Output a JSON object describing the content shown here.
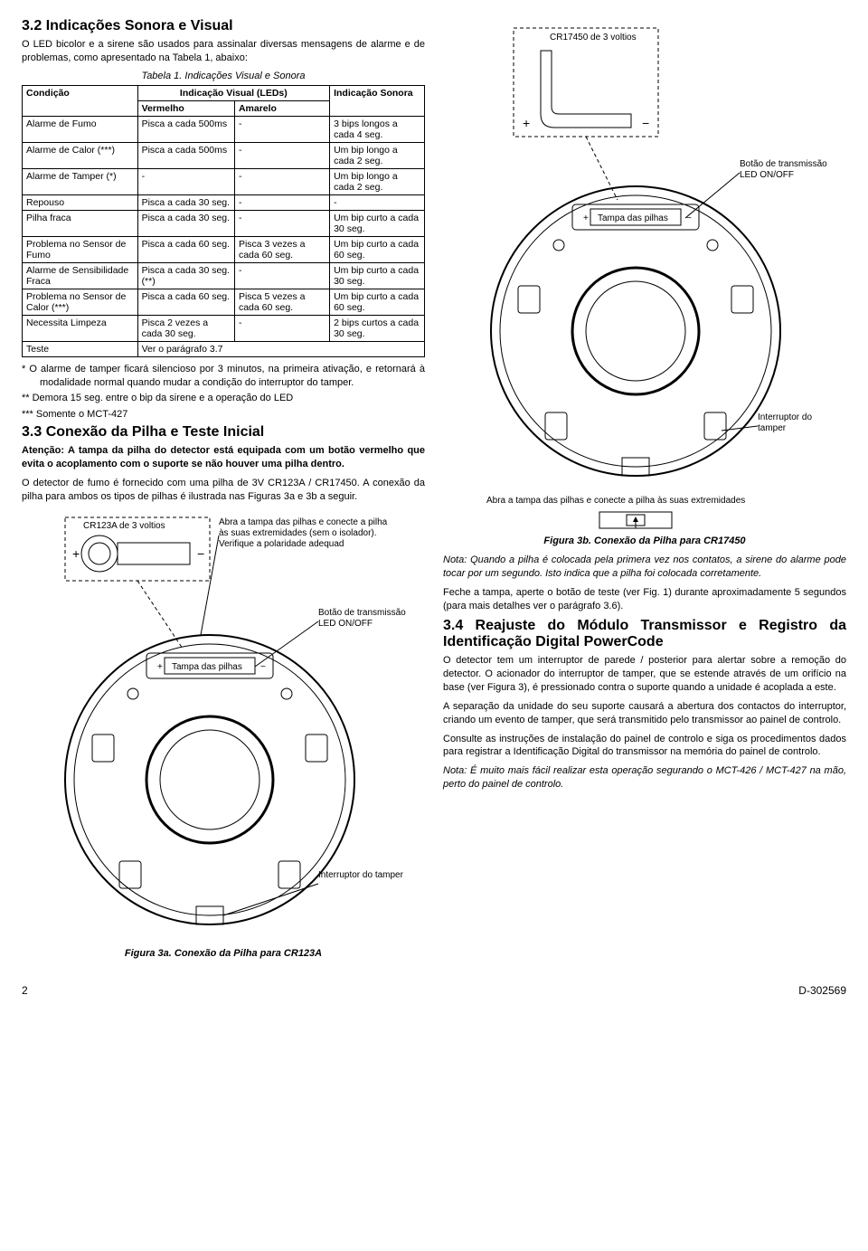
{
  "left": {
    "h_3_2": "3.2 Indicações Sonora e Visual",
    "p_3_2_intro": "O LED bicolor e a sirene são usados para assinalar diversas mensagens de alarme e de problemas, como apresentado na Tabela 1, abaixo:",
    "table_caption": "Tabela 1. Indicações Visual e Sonora",
    "th_cond": "Condição",
    "th_vis": "Indicação Visual (LEDs)",
    "th_verm": "Vermelho",
    "th_amar": "Amarelo",
    "th_son": "Indicação Sonora",
    "rows": [
      {
        "c": "Alarme de Fumo",
        "v": "Pisca a cada 500ms",
        "a": "-",
        "s": "3 bips longos a cada 4 seg."
      },
      {
        "c": "Alarme de Calor (***)",
        "v": "Pisca a cada 500ms",
        "a": "-",
        "s": "Um bip longo a cada 2 seg."
      },
      {
        "c": "Alarme de Tamper (*)",
        "v": "-",
        "a": "-",
        "s": "Um bip longo a cada 2 seg."
      },
      {
        "c": "Repouso",
        "v": "Pisca a cada 30 seg.",
        "a": "-",
        "s": "-"
      },
      {
        "c": "Pilha fraca",
        "v": "Pisca a cada 30 seg.",
        "a": "-",
        "s": "Um bip curto a cada 30 seg."
      },
      {
        "c": "Problema no Sensor de Fumo",
        "v": "Pisca a cada 60 seg.",
        "a": "Pisca 3 vezes a cada 60 seg.",
        "s": "Um bip curto a cada 60 seg."
      },
      {
        "c": "Alarme de Sensibilidade Fraca",
        "v": "Pisca a cada 30 seg.(**)",
        "a": "-",
        "s": "Um bip curto a cada 30 seg."
      },
      {
        "c": "Problema no Sensor de Calor (***)",
        "v": "Pisca a cada 60 seg.",
        "a": "Pisca 5 vezes a cada 60 seg.",
        "s": "Um bip curto a cada 60 seg."
      },
      {
        "c": "Necessita Limpeza",
        "v": "Pisca 2 vezes a cada 30 seg.",
        "a": "-",
        "s": "2 bips curtos a cada 30 seg."
      },
      {
        "c": "Teste",
        "v": "Ver o parágrafo 3.7",
        "a": "",
        "s": ""
      }
    ],
    "note1": "*    O alarme de tamper ficará silencioso por 3 minutos, na primeira ativação, e retornará à modalidade normal quando mudar a condição do interruptor do tamper.",
    "note2": "**   Demora 15 seg. entre o bip da sirene e a operação do LED",
    "note3": "***  Somente o MCT-427",
    "h_3_3": "3.3 Conexão da Pilha e Teste Inicial",
    "p_3_3a": "Atenção: A tampa da pilha do detector está equipada com um botão vermelho que evita o acoplamento com o suporte se não houver uma pilha dentro.",
    "p_3_3b": "O detector de fumo é fornecido com uma pilha de 3V CR123A / CR17450. A conexão da pilha para ambos os tipos de pilhas é ilustrada nas Figuras 3a e 3b a seguir.",
    "fig3a_caption": "Figura 3a. Conexão da Pilha para CR123A",
    "fig3a": {
      "batt_label": "CR123A de 3 voltios",
      "open_label": "Abra a tampa das pilhas e conecte a pilha às suas extremidades (sem o isolador). Verifique a polaridade adequad",
      "tx_label": "Botão de transmissão LED ON/OFF",
      "cover_label": "Tampa das pilhas",
      "tamper_label": "Interruptor do tamper"
    }
  },
  "right": {
    "fig3b": {
      "batt_label": "CR17450 de 3 voltios",
      "tx_label": "Botão de transmissão LED ON/OFF",
      "cover_label": "Tampa das pilhas",
      "tamper_label": "Interruptor do tamper",
      "open_label": "Abra a tampa das pilhas e conecte a pilha às suas extremidades"
    },
    "fig3b_caption": "Figura 3b. Conexão da Pilha para CR17450",
    "p_note": "Nota: Quando a pilha é colocada pela primera vez nos contatos, a sirene do alarme pode tocar por um segundo. Isto indica que a pilha foi colocada corretamente.",
    "p_close": "Feche a tampa, aperte o botão de teste (ver Fig. 1) durante aproximadamente 5 segundos (para mais detalhes ver o parágrafo 3.6).",
    "h_3_4": "3.4 Reajuste do Módulo Transmissor e Registro da Identificação Digital PowerCode",
    "p_3_4a": "O detector tem um interruptor de parede / posterior para alertar sobre a remoção do detector. O acionador do interruptor de tamper, que se estende através de um orifício na base (ver Figura 3), é pressionado contra o suporte quando a unidade é acoplada a este.",
    "p_3_4b": "A separação da unidade do seu suporte causará a abertura dos contactos do interruptor, criando um evento de tamper, que será transmitido pelo transmissor ao painel de controlo.",
    "p_3_4c": "Consulte as instruções de instalação do painel de controlo e siga os procedimentos dados para registrar a Identificação Digital do transmissor na memória do painel de controlo.",
    "p_3_4d": "Nota: É muito mais fácil realizar esta operação segurando o MCT-426 / MCT-427 na mão, perto do painel de controlo."
  },
  "footer": {
    "page": "2",
    "doc": "D-302569"
  },
  "style": {
    "stroke": "#000000",
    "dash": "4,3",
    "line_w": 1,
    "diagram_bg": "#ffffff"
  }
}
